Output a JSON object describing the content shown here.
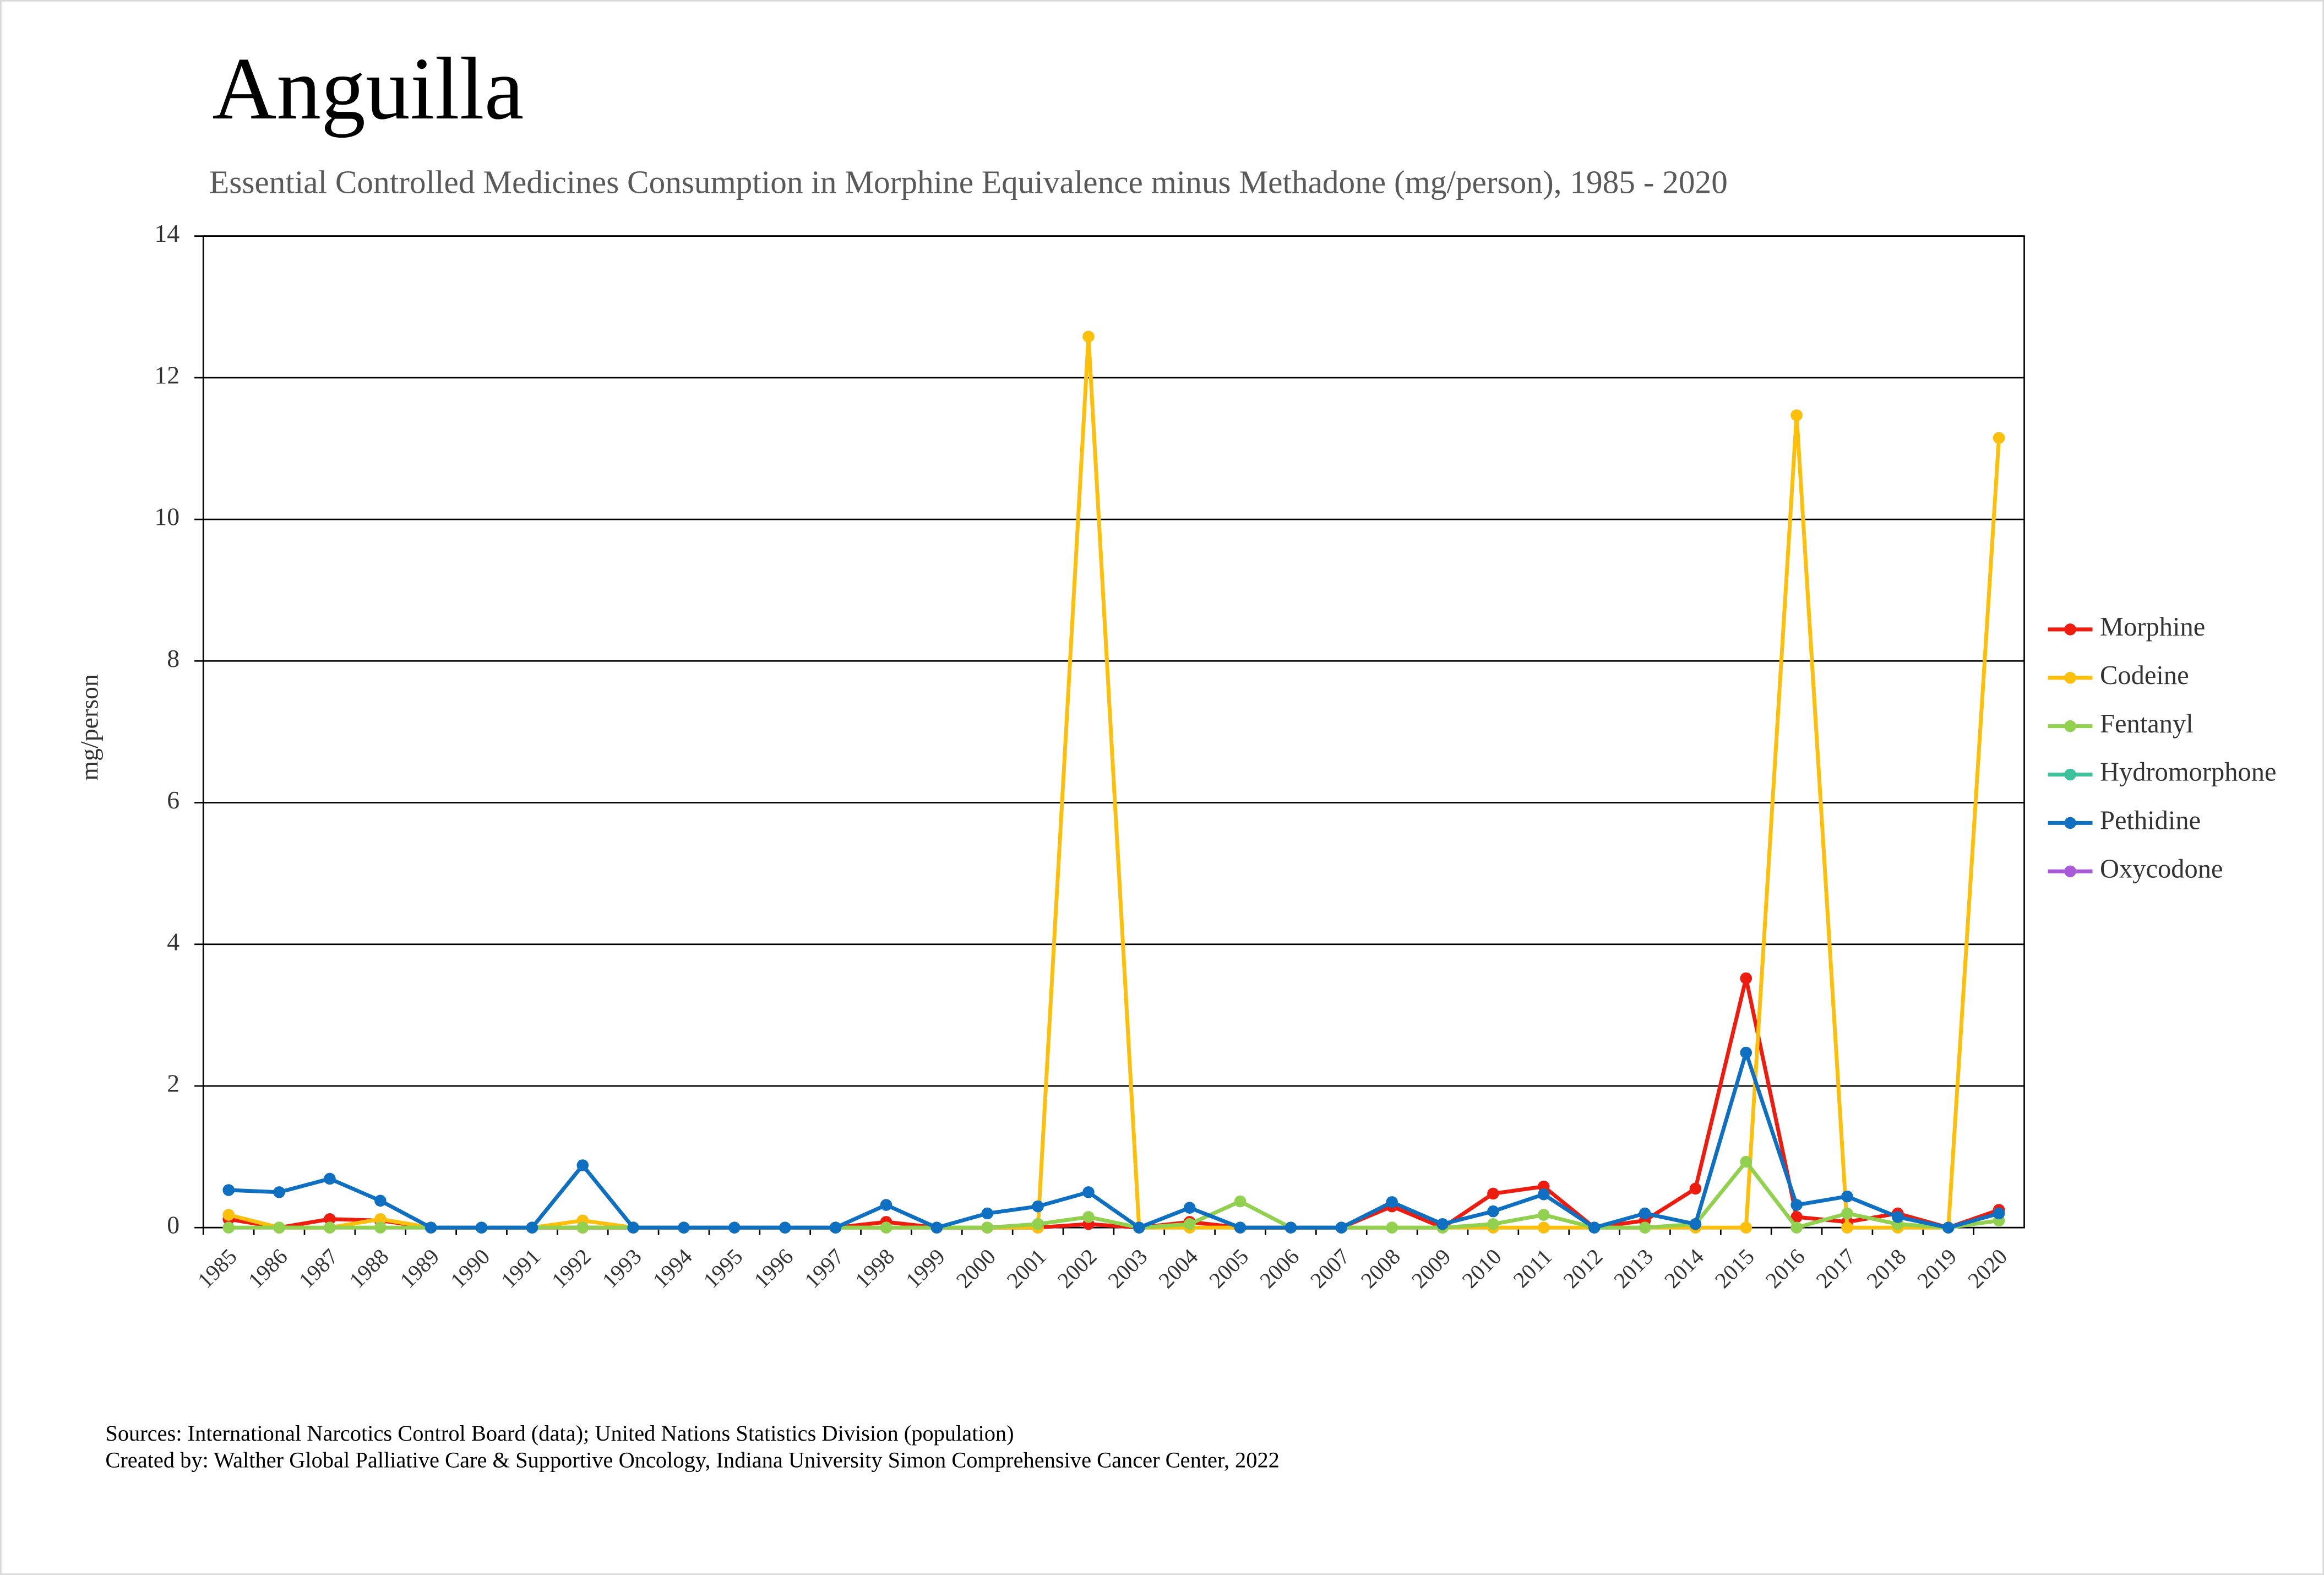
{
  "chart_data": {
    "type": "line",
    "title": "Anguilla",
    "subtitle": "Essential Controlled Medicines Consumption in Morphine Equivalence minus Methadone (mg/person), 1985 - 2020",
    "y_label": "mg/person",
    "categories": [
      "1985",
      "1986",
      "1987",
      "1988",
      "1989",
      "1990",
      "1991",
      "1992",
      "1993",
      "1994",
      "1995",
      "1996",
      "1997",
      "1998",
      "1999",
      "2000",
      "2001",
      "2002",
      "2003",
      "2004",
      "2005",
      "2006",
      "2007",
      "2008",
      "2009",
      "2010",
      "2011",
      "2012",
      "2013",
      "2014",
      "2015",
      "2016",
      "2017",
      "2018",
      "2019",
      "2020"
    ],
    "series": [
      {
        "name": "Morphine",
        "color": "#ee1c0e",
        "values": [
          0.12,
          0,
          0.12,
          0.1,
          0,
          0,
          0,
          0,
          0,
          0,
          0,
          0,
          0,
          0.08,
          0,
          0,
          0,
          0.05,
          0,
          0.08,
          0,
          0,
          0,
          0.3,
          0,
          0.48,
          0.58,
          0,
          0.1,
          0.55,
          3.52,
          0.15,
          0.08,
          0.2,
          0,
          0.25
        ]
      },
      {
        "name": "Codeine",
        "color": "#fbbf0c",
        "values": [
          0.18,
          0,
          0,
          0.12,
          0,
          0,
          0,
          0.1,
          0,
          0,
          0,
          0,
          0,
          0,
          0,
          0,
          0,
          12.58,
          0,
          0,
          0,
          0,
          0,
          0,
          0,
          0,
          0,
          0,
          0,
          0,
          0,
          11.47,
          0,
          0,
          0,
          11.15
        ]
      },
      {
        "name": "Fentanyl",
        "color": "#92d050",
        "values": [
          0,
          0,
          0,
          0,
          0,
          0,
          0,
          0,
          0,
          0,
          0,
          0,
          0,
          0,
          0,
          0,
          0.05,
          0.15,
          0,
          0.05,
          0.37,
          0,
          0,
          0,
          0,
          0.05,
          0.18,
          0,
          0,
          0.05,
          0.93,
          0,
          0.2,
          0.05,
          0,
          0.1
        ]
      },
      {
        "name": "Hydromorphone",
        "color": "#3fc29b",
        "values": [
          null,
          null,
          null,
          null,
          null,
          null,
          null,
          null,
          null,
          null,
          null,
          null,
          null,
          null,
          null,
          null,
          null,
          null,
          null,
          null,
          null,
          null,
          null,
          null,
          null,
          null,
          null,
          null,
          null,
          null,
          null,
          null,
          null,
          null,
          null,
          null
        ]
      },
      {
        "name": "Pethidine",
        "color": "#0f6fc0",
        "values": [
          0.53,
          0.5,
          0.69,
          0.38,
          0,
          0,
          0,
          0.88,
          0,
          0,
          0,
          0,
          0,
          0.32,
          0,
          0.2,
          0.3,
          0.5,
          0,
          0.28,
          0,
          0,
          0,
          0.36,
          0.05,
          0.23,
          0.47,
          0,
          0.2,
          0.05,
          2.47,
          0.32,
          0.44,
          0.15,
          0,
          0.2
        ]
      },
      {
        "name": "Oxycodone",
        "color": "#a95ad6",
        "values": [
          null,
          null,
          null,
          null,
          null,
          null,
          null,
          null,
          null,
          null,
          null,
          null,
          null,
          null,
          null,
          null,
          null,
          null,
          null,
          null,
          null,
          null,
          null,
          null,
          null,
          null,
          null,
          null,
          null,
          null,
          null,
          null,
          null,
          null,
          null,
          null
        ]
      }
    ],
    "ylim": [
      0,
      14
    ],
    "yticks": [
      0,
      2,
      4,
      6,
      8,
      10,
      12,
      14
    ],
    "grid": true,
    "legend": "right",
    "footnotes": [
      "Sources: International Narcotics Control Board (data); United Nations Statistics Division (population)",
      "Created by: Walther Global Palliative Care & Supportive Oncology, Indiana University Simon Comprehensive Cancer Center, 2022"
    ]
  }
}
